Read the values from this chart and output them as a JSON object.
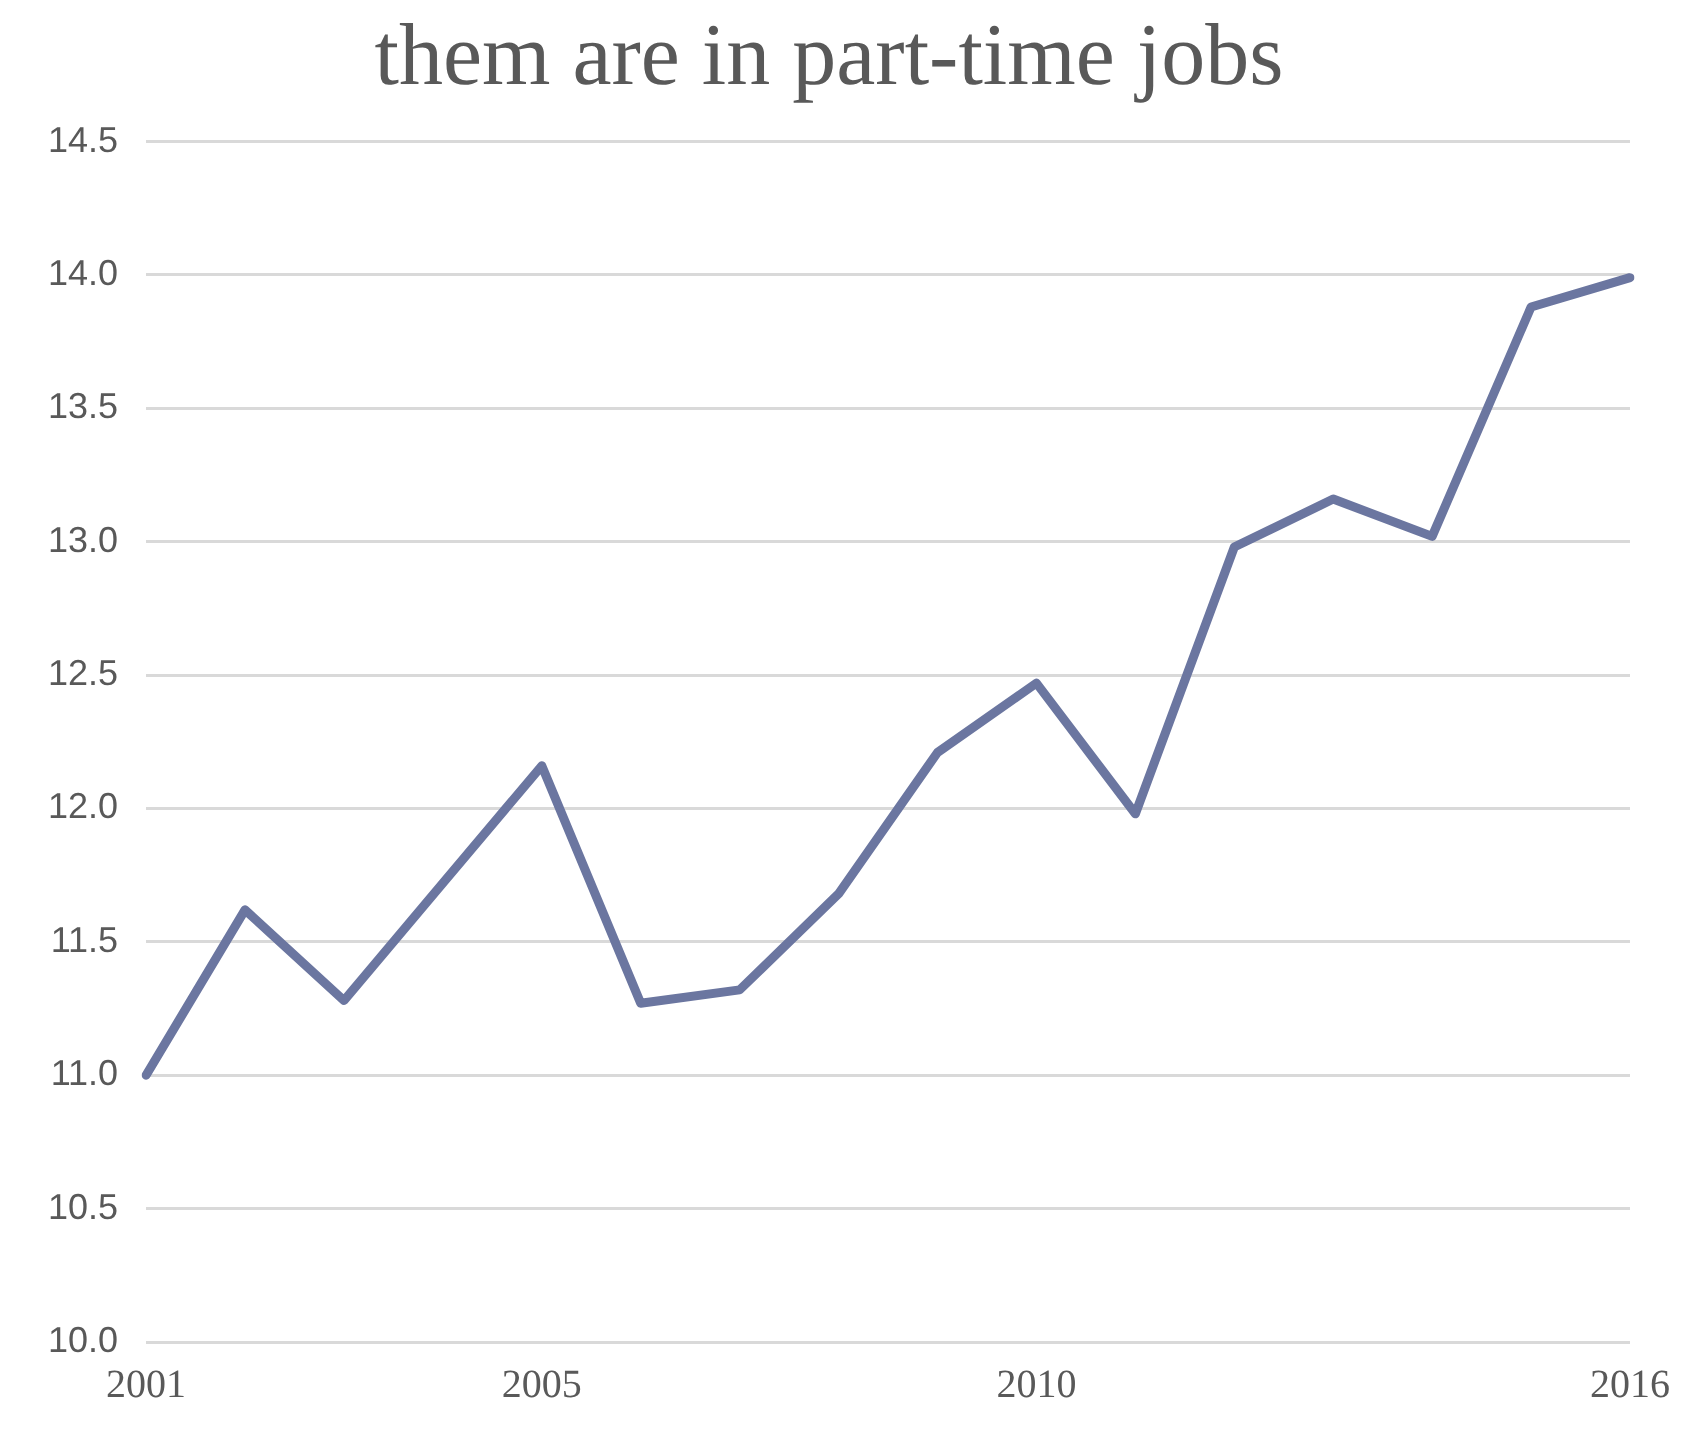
{
  "chart_data": {
    "type": "line",
    "title": "them are in part-time jobs",
    "categories": [
      "2001",
      null,
      null,
      null,
      "2005",
      null,
      null,
      null,
      null,
      "2010",
      null,
      null,
      null,
      null,
      null,
      "2016"
    ],
    "series": [
      {
        "color": "#6b76a0",
        "values": [
          11.0,
          11.62,
          11.28,
          11.72,
          12.16,
          11.27,
          11.32,
          11.68,
          12.21,
          12.47,
          11.98,
          12.98,
          13.16,
          13.02,
          13.88,
          13.99
        ]
      }
    ],
    "ylim": [
      10,
      14.5
    ],
    "yticks": [
      {
        "value": 10,
        "label": "10.0"
      },
      {
        "value": 10.5,
        "label": "10.5"
      },
      {
        "value": 11,
        "label": "11.0"
      },
      {
        "value": 11.5,
        "label": "11.5"
      },
      {
        "value": 12,
        "label": "12.0"
      },
      {
        "value": 12.5,
        "label": "12.5"
      },
      {
        "value": 13,
        "label": "13.0"
      },
      {
        "value": 13.5,
        "label": "13.5"
      },
      {
        "value": 14,
        "label": "14.0"
      },
      {
        "value": 14.5,
        "label": "14.5"
      }
    ],
    "grid": "y",
    "legend": false,
    "marker": "none",
    "line_style": "solid"
  }
}
